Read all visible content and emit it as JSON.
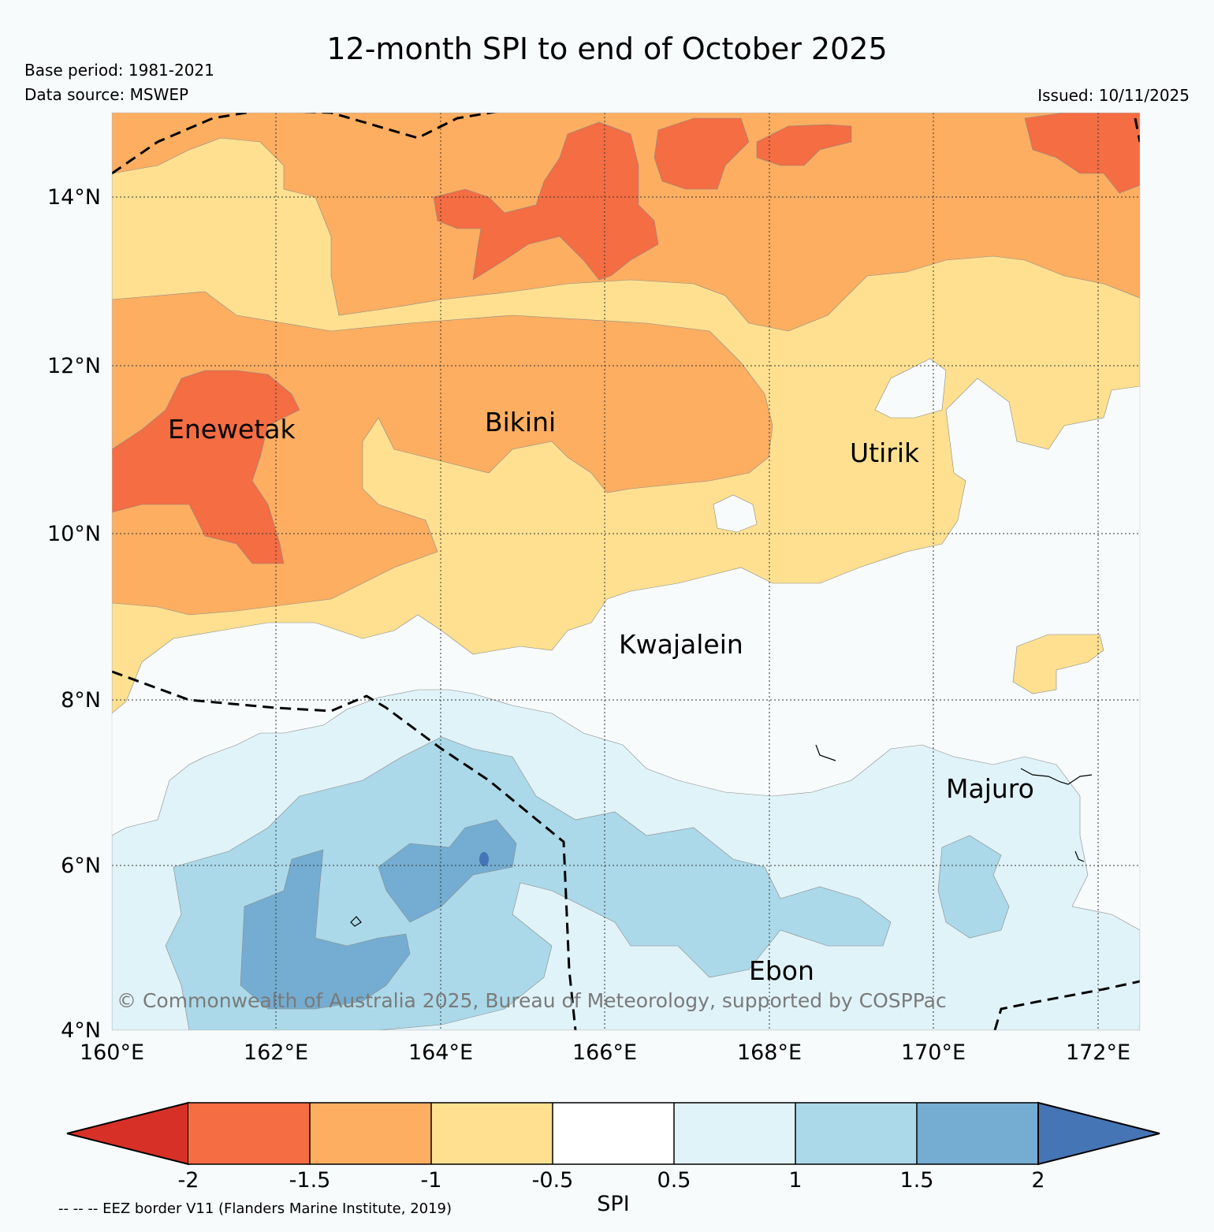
{
  "header": {
    "title": "12-month SPI to end of October 2025",
    "base_period": "Base period: 1981-2021",
    "data_source": "Data source: MSWEP",
    "issued": "Issued: 10/11/2025"
  },
  "map": {
    "lat_labels": [
      "14°N",
      "12°N",
      "10°N",
      "8°N",
      "6°N",
      "4°N"
    ],
    "lon_labels": [
      "160°E",
      "162°E",
      "164°E",
      "166°E",
      "168°E",
      "170°E",
      "172°E"
    ],
    "places": [
      "Enewetak",
      "Bikini",
      "Utirik",
      "Kwajalein",
      "Majuro",
      "Ebon"
    ],
    "copyright": "© Commonwealth of Australia 2025, Bureau of Meteorology, supported by COSPPac"
  },
  "colorbar": {
    "label": "SPI",
    "ticks": [
      "-2",
      "-1.5",
      "-1",
      "-0.5",
      "0.5",
      "1",
      "1.5",
      "2"
    ],
    "colors": [
      "#d73027",
      "#f46d43",
      "#fdae61",
      "#fee090",
      "#ffffff",
      "#e0f3f8",
      "#abd9e9",
      "#74add1",
      "#4575b4"
    ]
  },
  "footer": {
    "eez_note": "-- -- -- EEZ border V11 (Flanders Marine Institute, 2019)"
  }
}
